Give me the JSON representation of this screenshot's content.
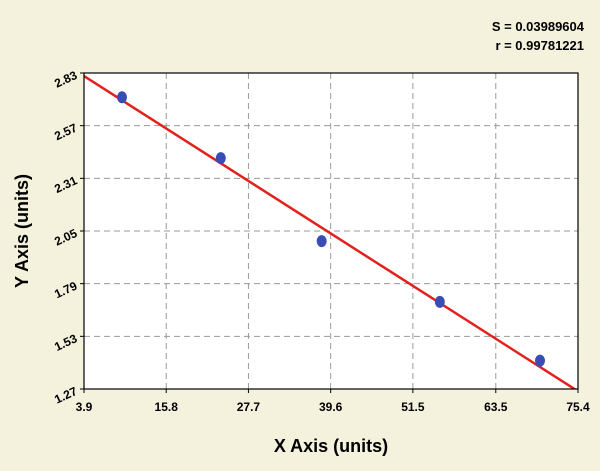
{
  "chart_data": {
    "type": "scatter",
    "annotations": [
      "S = 0.03989604",
      "r = 0.99781221"
    ],
    "x_label": "X Axis (units)",
    "y_label": "Y Axis (units)",
    "xlim": [
      3.9,
      75.4
    ],
    "xticks": [
      3.9,
      15.8,
      27.7,
      39.6,
      51.5,
      63.5,
      75.4
    ],
    "ylim": [
      1.27,
      2.83
    ],
    "yticks": [
      1.27,
      1.53,
      1.79,
      2.05,
      2.31,
      2.57,
      2.83
    ],
    "grid": true,
    "series": [
      {
        "color": "#3a4db4",
        "x": [
          9.4,
          23.7,
          38.3,
          55.4,
          69.9
        ],
        "values": [
          2.71,
          2.41,
          2.0,
          1.7,
          1.41
        ]
      }
    ],
    "fit_line": {
      "color": "#e3211c",
      "x": [
        3.9,
        75.4
      ],
      "values": [
        2.815,
        1.259
      ]
    }
  }
}
